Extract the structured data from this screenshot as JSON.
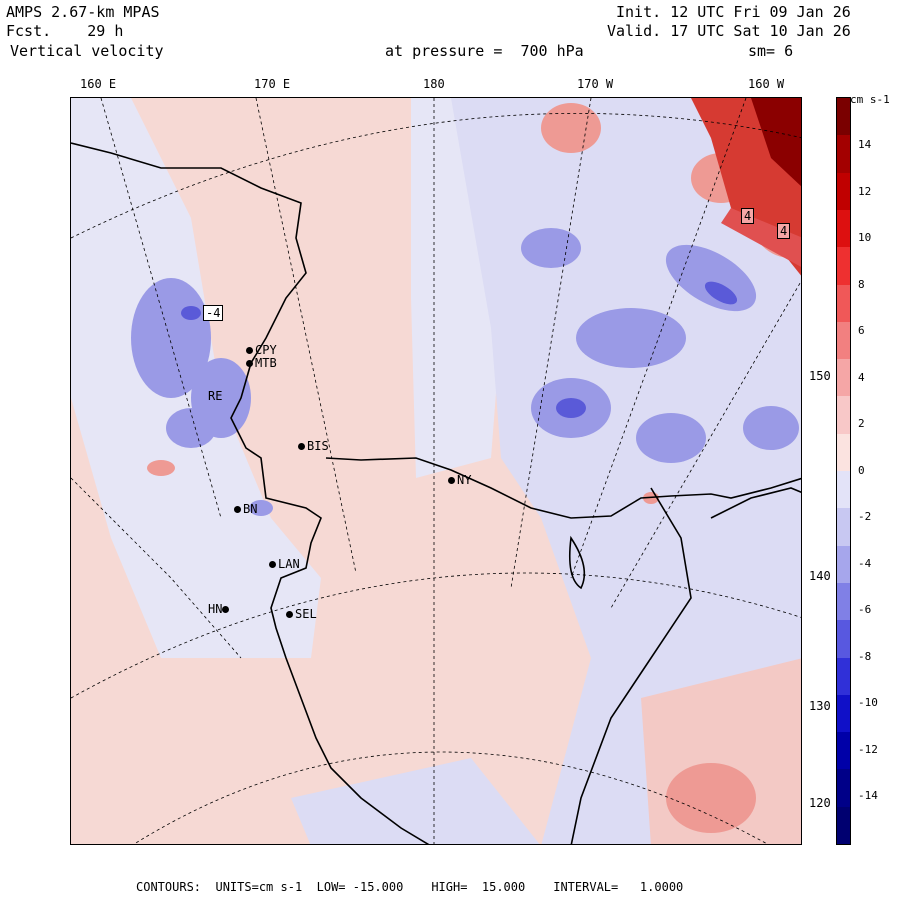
{
  "header": {
    "model": "AMPS 2.67-km MPAS",
    "forecast": "Fcst.    29 h",
    "field": "Vertical velocity",
    "init": "Init. 12 UTC Fri 09 Jan 26",
    "valid": "Valid. 17 UTC Sat 10 Jan 26",
    "pressure": "at pressure =  700 hPa",
    "smoothing": "sm= 6"
  },
  "top_ticks": [
    "160 E",
    "170 E",
    "180",
    "170 W",
    "160 W"
  ],
  "right_ticks": [
    "150 W",
    "140 W",
    "130 W",
    "120 W"
  ],
  "stations": [
    "CPY",
    "MTB",
    "RE",
    "BIS",
    "NY",
    "LAN",
    "SEL",
    "HN",
    "BN"
  ],
  "contour_labels": [
    "-4",
    "4",
    "4"
  ],
  "colorbar": {
    "units": "cm s-1",
    "labels": [
      "14",
      "12",
      "10",
      "8",
      "6",
      "4",
      "2",
      "0",
      "-2",
      "-4",
      "-6",
      "-8",
      "-10",
      "-12",
      "-14"
    ],
    "colors": [
      "#7a0000",
      "#a30000",
      "#c00000",
      "#dd1010",
      "#ee3030",
      "#f05858",
      "#f28080",
      "#f5a6a6",
      "#f8c8c8",
      "#fbe3e0",
      "#e3e3f8",
      "#c8c8f2",
      "#a6a6ec",
      "#8080e6",
      "#5858e0",
      "#3030d8",
      "#1010c8",
      "#0000a8",
      "#000088",
      "#000070"
    ]
  },
  "footer": {
    "contours": "CONTOURS:  UNITS=cm s-1  LOW= -15.000",
    "high": "HIGH=  15.000",
    "interval": "INTERVAL=   1.0000"
  }
}
